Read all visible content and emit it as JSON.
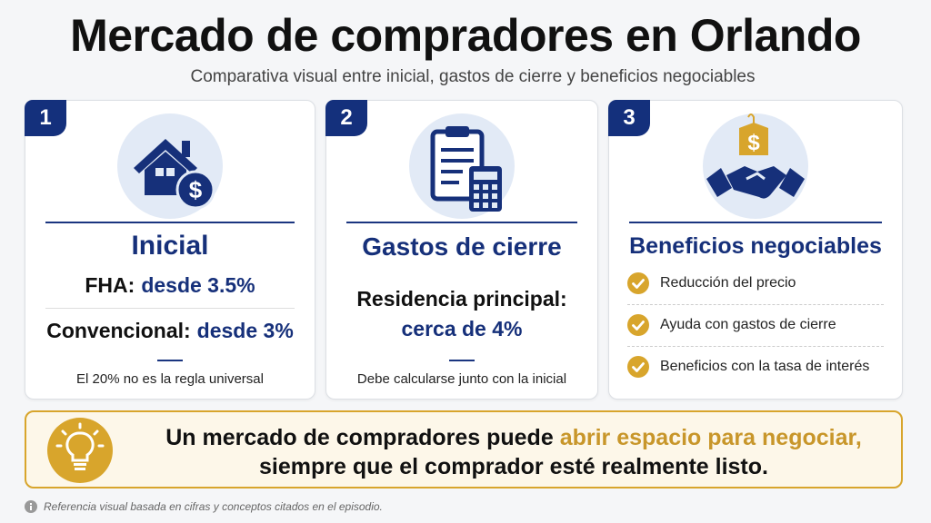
{
  "header": {
    "title": "Mercado de compradores en Orlando",
    "subtitle": "Comparativa visual entre inicial, gastos de cierre y beneficios negociables"
  },
  "cards": [
    {
      "number": "1",
      "title": "Inicial",
      "lines": [
        {
          "label": "FHA:",
          "value": "desde 3.5%"
        },
        {
          "label": "Convencional:",
          "value": "desde 3%"
        }
      ],
      "note": "El 20% no es la regla universal"
    },
    {
      "number": "2",
      "title": "Gastos de cierre",
      "lines": [
        {
          "label": "Residencia principal:",
          "value": "cerca de 4%"
        }
      ],
      "note": "Debe calcularse junto con la inicial"
    },
    {
      "number": "3",
      "title": "Beneficios negociables",
      "items": [
        "Reducción del precio",
        "Ayuda con gastos de cierre",
        "Beneficios con la tasa de interés"
      ]
    }
  ],
  "banner": {
    "text_start": "Un mercado de compradores puede",
    "highlight": "abrir espacio para negociar,",
    "line2": "siempre que el comprador esté realmente listo."
  },
  "footer": {
    "note": "Referencia visual basada en cifras y conceptos citados en el episodio."
  }
}
